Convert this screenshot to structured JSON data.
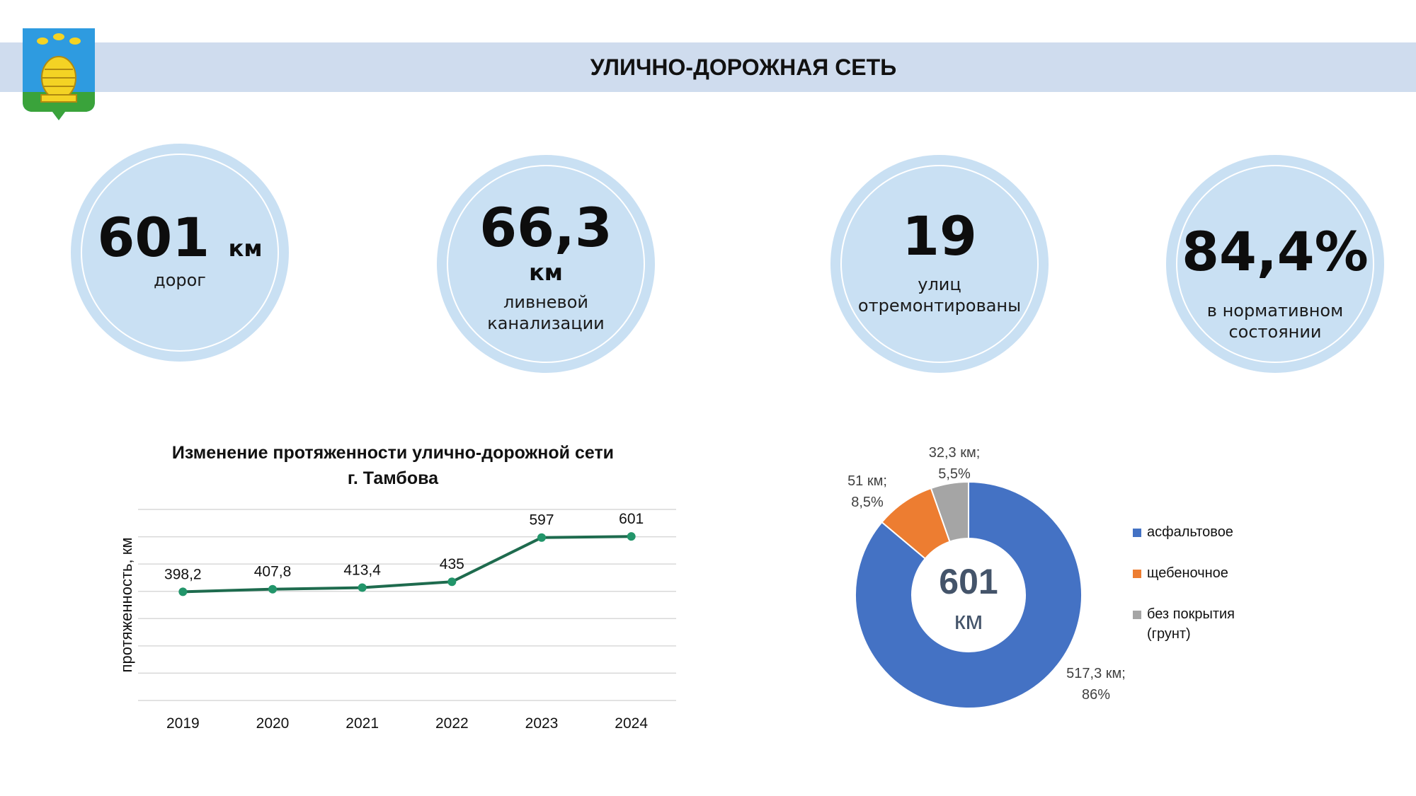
{
  "header": {
    "title": "УЛИЧНО-ДОРОЖНАЯ СЕТЬ"
  },
  "colors": {
    "header_band": "#cfdcee",
    "kpi_circle": "#c9e0f3",
    "line_series": "#1e6b4e",
    "line_marker": "#22956a",
    "asphalt": "#4472c4",
    "gravel": "#ed7d31",
    "dirt": "#a5a5a5",
    "donut_center_text": "#44546a"
  },
  "kpis": [
    {
      "value": "601",
      "unit": "км",
      "caption": "дорог"
    },
    {
      "value": "66,3",
      "unit": "км",
      "caption_line1": "ливневой",
      "caption_line2": "канализации"
    },
    {
      "value": "19",
      "caption_line1": "улиц",
      "caption_line2": "отремонтированы"
    },
    {
      "value": "84,4%",
      "caption_line1": "в нормативном",
      "caption_line2": "состоянии"
    }
  ],
  "chart_data": [
    {
      "type": "line",
      "title_line1": "Изменение протяженности улично-дорожной сети",
      "title_line2": "г. Тамбова",
      "ylabel": "протяженность, км",
      "categories": [
        "2019",
        "2020",
        "2021",
        "2022",
        "2023",
        "2024"
      ],
      "values": [
        398.2,
        407.8,
        413.4,
        435,
        597,
        601
      ],
      "data_labels": [
        "398,2",
        "407,8",
        "413,4",
        "435",
        "597",
        "601"
      ],
      "ylim": [
        0,
        700
      ],
      "grid": true
    },
    {
      "type": "pie",
      "variant": "donut",
      "center_value": "601",
      "center_unit": "км",
      "slices": [
        {
          "label": "асфальтовое",
          "value": 517.3,
          "percent": 86,
          "data_label_line1": "517,3 км;",
          "data_label_line2": "86%"
        },
        {
          "label": "щебеночное",
          "value": 51,
          "percent": 8.5,
          "data_label_line1": "51 км;",
          "data_label_line2": "8,5%"
        },
        {
          "label_line1": "без покрытия",
          "label_line2": "(грунт)",
          "value": 32.3,
          "percent": 5.5,
          "data_label_line1": "32,3 км;",
          "data_label_line2": "5,5%"
        }
      ],
      "legend_position": "right"
    }
  ]
}
